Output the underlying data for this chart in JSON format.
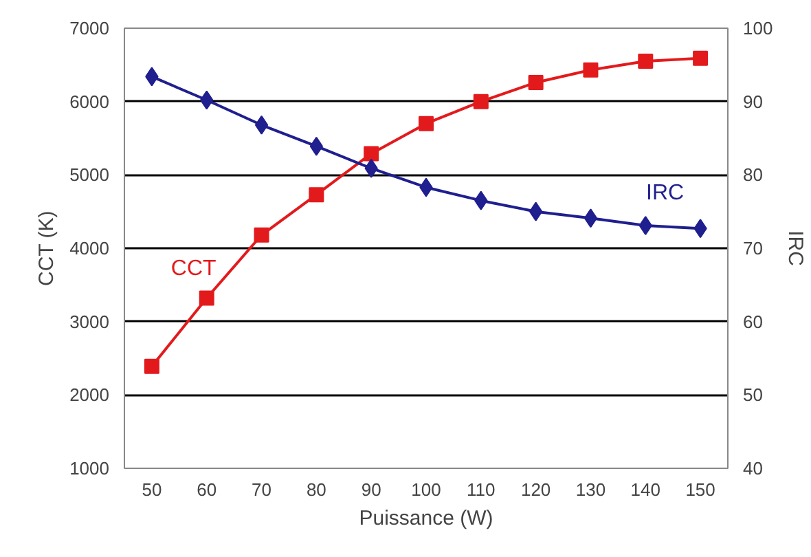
{
  "chart_data": {
    "type": "line",
    "xlabel": "Puissance (W)",
    "ylabel": "CCT (K)",
    "y2label": "IRC",
    "categories": [
      "50",
      "60",
      "70",
      "80",
      "90",
      "100",
      "110",
      "120",
      "130",
      "140",
      "150"
    ],
    "series": [
      {
        "name": "CCT",
        "color": "#e31a1c",
        "marker": "square",
        "values": [
          2390,
          3320,
          4180,
          4730,
          5290,
          5700,
          6000,
          6260,
          6430,
          6550,
          6590
        ]
      },
      {
        "name": "IRC",
        "color": "#1f1f8f",
        "marker": "diamond",
        "axis": "y2",
        "values": [
          93.4,
          90.2,
          86.8,
          83.9,
          80.9,
          78.3,
          76.5,
          75.0,
          74.1,
          73.1,
          72.7
        ]
      }
    ],
    "ylim": [
      1000,
      7000
    ],
    "yticks": [
      1000,
      2000,
      3000,
      4000,
      5000,
      6000,
      7000
    ],
    "y2lim": [
      40,
      100
    ],
    "y2ticks": [
      40,
      50,
      60,
      70,
      80,
      90,
      100
    ],
    "grid": "y"
  }
}
